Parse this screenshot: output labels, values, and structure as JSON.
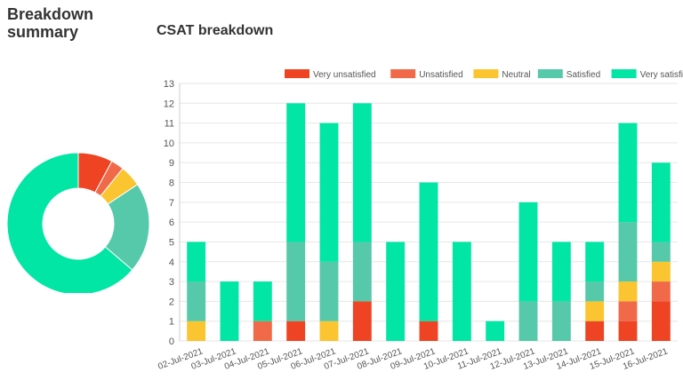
{
  "summary": {
    "title": "Breakdown summary"
  },
  "chart_data": [
    {
      "type": "pie",
      "title": "",
      "labels": [
        "Very unsatisfied",
        "Unsatisfied",
        "Neutral",
        "Satisfied",
        "Very satisfied"
      ],
      "values": [
        8,
        3,
        5,
        21,
        65
      ],
      "donut": true
    },
    {
      "type": "bar",
      "stacked": true,
      "title": "CSAT breakdown",
      "legend": "top",
      "categories": [
        "02-Jul-2021",
        "03-Jul-2021",
        "04-Jul-2021",
        "05-Jul-2021",
        "06-Jul-2021",
        "07-Jul-2021",
        "08-Jul-2021",
        "09-Jul-2021",
        "10-Jul-2021",
        "11-Jul-2021",
        "12-Jul-2021",
        "13-Jul-2021",
        "14-Jul-2021",
        "15-Jul-2021",
        "16-Jul-2021"
      ],
      "series": [
        {
          "name": "Very unsatisfied",
          "color": "#ee4423",
          "values": [
            0,
            0,
            0,
            1,
            0,
            2,
            0,
            1,
            0,
            0,
            0,
            0,
            1,
            1,
            2
          ]
        },
        {
          "name": "Unsatisfied",
          "color": "#f06a4a",
          "values": [
            0,
            0,
            1,
            0,
            0,
            0,
            0,
            0,
            0,
            0,
            0,
            0,
            0,
            1,
            1
          ]
        },
        {
          "name": "Neutral",
          "color": "#fbc531",
          "values": [
            1,
            0,
            0,
            0,
            1,
            0,
            0,
            0,
            0,
            0,
            0,
            0,
            1,
            1,
            1
          ]
        },
        {
          "name": "Satisfied",
          "color": "#55c9a9",
          "values": [
            2,
            0,
            0,
            4,
            3,
            3,
            0,
            0,
            0,
            0,
            2,
            2,
            1,
            3,
            1
          ]
        },
        {
          "name": "Very satisfied",
          "color": "#01e6a4",
          "values": [
            2,
            3,
            2,
            7,
            7,
            7,
            5,
            7,
            5,
            1,
            5,
            3,
            2,
            5,
            4
          ]
        }
      ],
      "ylim": [
        0,
        13
      ],
      "yticks": [
        0,
        1,
        2,
        3,
        4,
        5,
        6,
        7,
        8,
        9,
        10,
        11,
        12,
        13
      ],
      "grid": true
    }
  ]
}
